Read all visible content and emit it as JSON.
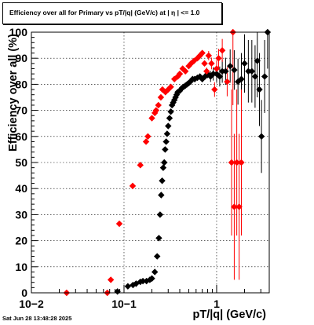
{
  "chart_data": {
    "type": "scatter",
    "title": "Efficiency over all for Primary vs pT/|q| (GeV/c) at |  η  | <= 1.0",
    "xlabel": "pT/|q| (GeV/c)",
    "ylabel": "Efficiency over all (%)",
    "xscale": "log",
    "xlim": [
      0.01,
      3.7
    ],
    "ylim": [
      0,
      100
    ],
    "xticks": [
      "10−2",
      "10−1",
      "1"
    ],
    "yticks": [
      "0",
      "10",
      "20",
      "30",
      "40",
      "50",
      "60",
      "70",
      "80",
      "90",
      "100"
    ],
    "grid": true,
    "series": [
      {
        "color": "#000000",
        "marker": "diamond",
        "points": [
          [
            0.085,
            0.5
          ],
          [
            0.11,
            2.5
          ],
          [
            0.125,
            3
          ],
          [
            0.135,
            3.5
          ],
          [
            0.15,
            4.2
          ],
          [
            0.16,
            4.5
          ],
          [
            0.175,
            4.5
          ],
          [
            0.19,
            5
          ],
          [
            0.2,
            5.5
          ],
          [
            0.215,
            8
          ],
          [
            0.228,
            14
          ],
          [
            0.238,
            21
          ],
          [
            0.245,
            30
          ],
          [
            0.252,
            37.5
          ],
          [
            0.258,
            43
          ],
          [
            0.265,
            48
          ],
          [
            0.272,
            50
          ],
          [
            0.278,
            55
          ],
          [
            0.285,
            58
          ],
          [
            0.292,
            61
          ],
          [
            0.3,
            64
          ],
          [
            0.31,
            67
          ],
          [
            0.32,
            69.5
          ],
          [
            0.33,
            72
          ],
          [
            0.34,
            73
          ],
          [
            0.35,
            74
          ],
          [
            0.36,
            75
          ],
          [
            0.37,
            76
          ],
          [
            0.38,
            77
          ],
          [
            0.4,
            77.5
          ],
          [
            0.42,
            78.5
          ],
          [
            0.44,
            79
          ],
          [
            0.46,
            79.5
          ],
          [
            0.48,
            80
          ],
          [
            0.5,
            80.5
          ],
          [
            0.52,
            81
          ],
          [
            0.55,
            82
          ],
          [
            0.58,
            82
          ],
          [
            0.62,
            82.5
          ],
          [
            0.66,
            83
          ],
          [
            0.7,
            82
          ],
          [
            0.75,
            83
          ],
          [
            0.8,
            84
          ],
          [
            0.86,
            83
          ],
          [
            0.92,
            84
          ],
          [
            1.0,
            84
          ],
          [
            1.08,
            83
          ],
          [
            1.15,
            85
          ],
          [
            1.25,
            85
          ],
          [
            1.4,
            87
          ],
          [
            1.55,
            85.5
          ],
          [
            1.7,
            81
          ],
          [
            1.85,
            82
          ],
          [
            2.0,
            88
          ],
          [
            2.2,
            85
          ],
          [
            2.4,
            85
          ],
          [
            2.6,
            83
          ],
          [
            2.75,
            89
          ],
          [
            2.9,
            78
          ],
          [
            3.05,
            60
          ],
          [
            3.3,
            83
          ],
          [
            3.55,
            100
          ]
        ]
      },
      {
        "color": "#ff0000",
        "marker": "diamond",
        "points": [
          [
            0.024,
            0
          ],
          [
            0.066,
            0
          ],
          [
            0.072,
            5
          ],
          [
            0.089,
            26.5
          ],
          [
            0.124,
            41
          ],
          [
            0.15,
            49
          ],
          [
            0.173,
            58
          ],
          [
            0.181,
            60
          ],
          [
            0.2,
            67
          ],
          [
            0.215,
            69
          ],
          [
            0.222,
            70
          ],
          [
            0.235,
            72
          ],
          [
            0.25,
            75
          ],
          [
            0.26,
            78
          ],
          [
            0.28,
            77
          ],
          [
            0.3,
            78
          ],
          [
            0.32,
            79
          ],
          [
            0.35,
            82
          ],
          [
            0.38,
            83
          ],
          [
            0.4,
            84
          ],
          [
            0.43,
            86
          ],
          [
            0.46,
            85
          ],
          [
            0.5,
            87
          ],
          [
            0.53,
            88
          ],
          [
            0.57,
            89
          ],
          [
            0.62,
            90
          ],
          [
            0.66,
            91
          ],
          [
            0.7,
            92
          ],
          [
            0.74,
            88
          ],
          [
            0.78,
            85
          ],
          [
            0.82,
            91
          ],
          [
            0.88,
            88
          ],
          [
            0.95,
            78
          ],
          [
            1.0,
            86
          ],
          [
            1.05,
            90
          ],
          [
            1.15,
            93
          ],
          [
            1.3,
            81
          ],
          [
            1.45,
            50
          ],
          [
            1.5,
            100
          ],
          [
            1.55,
            33
          ],
          [
            1.65,
            50
          ],
          [
            1.75,
            33
          ],
          [
            1.85,
            50
          ]
        ]
      }
    ]
  },
  "header": {
    "title": "Efficiency over all for Primary vs pT/|q| (GeV/c) at |  η  | <= 1.0",
    "timestamp": "Sat Jun 28 13:48:28 2025"
  }
}
